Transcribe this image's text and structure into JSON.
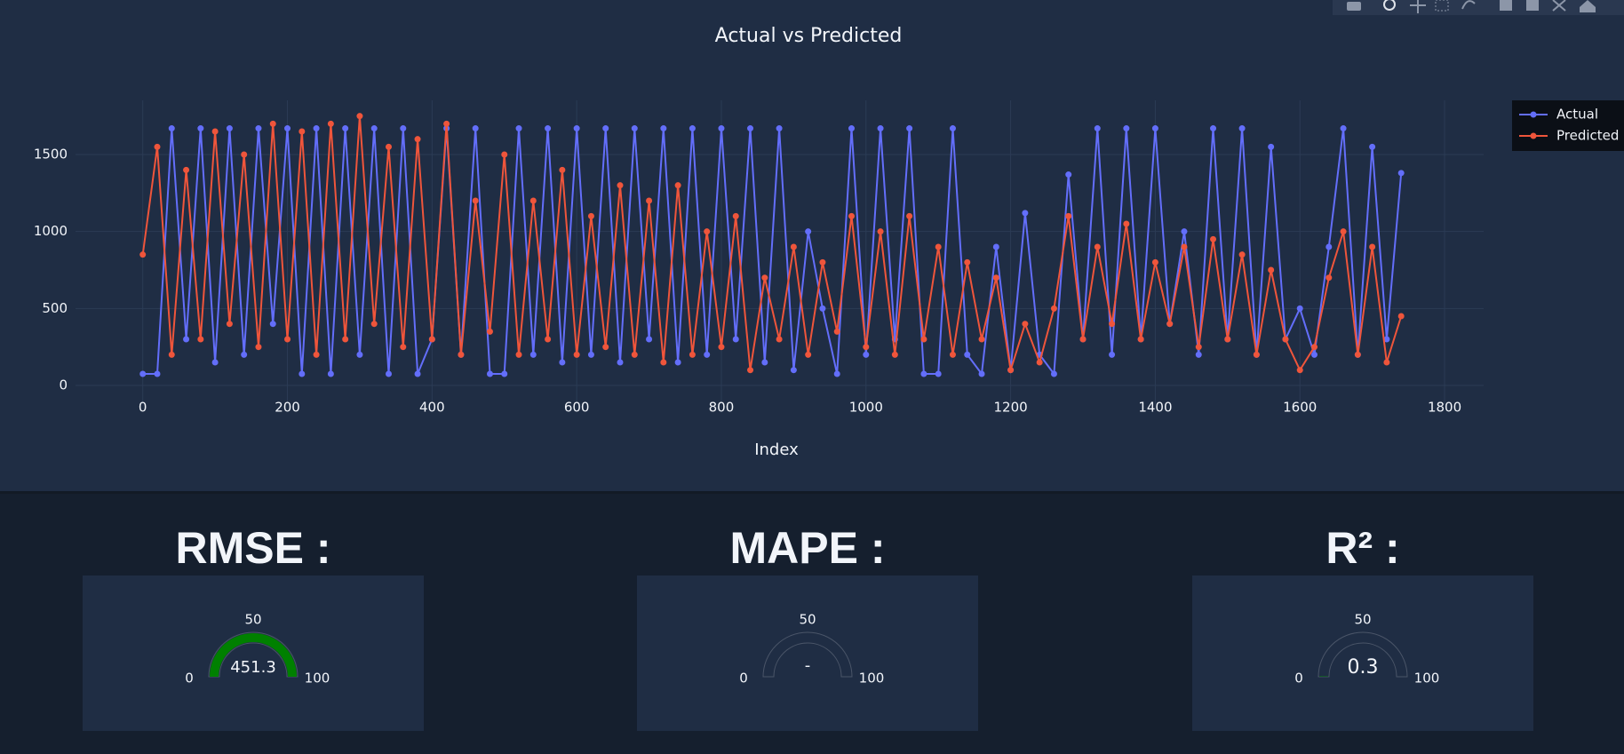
{
  "chart_data": [
    {
      "type": "line",
      "title": "Actual vs Predicted",
      "x_label": "Index",
      "x": [
        0,
        20,
        40,
        60,
        80,
        100,
        120,
        140,
        160,
        180,
        200,
        220,
        240,
        260,
        280,
        300,
        320,
        340,
        360,
        380,
        400,
        420,
        440,
        460,
        480,
        500,
        520,
        540,
        560,
        580,
        600,
        620,
        640,
        660,
        680,
        700,
        720,
        740,
        760,
        780,
        800,
        820,
        840,
        860,
        880,
        900,
        920,
        940,
        960,
        980,
        1000,
        1020,
        1040,
        1060,
        1080,
        1100,
        1120,
        1140,
        1160,
        1180,
        1200,
        1220,
        1240,
        1260,
        1280,
        1300,
        1320,
        1340,
        1360,
        1380,
        1400,
        1420,
        1440,
        1460,
        1480,
        1500,
        1520,
        1540,
        1560,
        1580,
        1600,
        1620,
        1640,
        1660,
        1680,
        1700,
        1720,
        1740
      ],
      "series": [
        {
          "name": "Actual",
          "color": "#636efa",
          "values": [
            75,
            75,
            1670,
            300,
            1670,
            150,
            1670,
            200,
            1670,
            400,
            1670,
            75,
            1670,
            75,
            1670,
            200,
            1670,
            75,
            1670,
            75,
            300,
            1670,
            200,
            1670,
            75,
            75,
            1670,
            200,
            1670,
            150,
            1670,
            200,
            1670,
            150,
            1670,
            300,
            1670,
            150,
            1670,
            200,
            1670,
            300,
            1670,
            150,
            1670,
            100,
            1000,
            500,
            75,
            1670,
            200,
            1670,
            300,
            1670,
            75,
            75,
            1670,
            200,
            75,
            900,
            100,
            1120,
            200,
            75,
            1370,
            300,
            1670,
            200,
            1670,
            300,
            1670,
            400,
            1000,
            200,
            1670,
            300,
            1670,
            200,
            1550,
            300,
            500,
            200,
            900,
            1670,
            200,
            1550,
            300,
            1380
          ]
        },
        {
          "name": "Predicted",
          "color": "#ef553b",
          "values": [
            850,
            1550,
            200,
            1400,
            300,
            1650,
            400,
            1500,
            250,
            1700,
            300,
            1650,
            200,
            1700,
            300,
            1750,
            400,
            1550,
            250,
            1600,
            300,
            1700,
            200,
            1200,
            350,
            1500,
            200,
            1200,
            300,
            1400,
            200,
            1100,
            250,
            1300,
            200,
            1200,
            150,
            1300,
            200,
            1000,
            250,
            1100,
            100,
            700,
            300,
            900,
            200,
            800,
            350,
            1100,
            250,
            1000,
            200,
            1100,
            300,
            900,
            200,
            800,
            300,
            700,
            100,
            400,
            150,
            500,
            1100,
            300,
            900,
            400,
            1050,
            300,
            800,
            400,
            900,
            250,
            950,
            300,
            850,
            200,
            750,
            300,
            100,
            250,
            700,
            1000,
            200,
            900,
            150,
            450
          ]
        }
      ],
      "xlim": [
        -93,
        1854
      ],
      "ylim": [
        -121,
        1852
      ],
      "xticks": [
        0,
        200,
        400,
        600,
        800,
        1000,
        1200,
        1400,
        1600,
        1800
      ],
      "yticks": [
        0,
        500,
        1000,
        1500
      ],
      "grid": true,
      "legend": "top-right"
    },
    {
      "type": "gauge",
      "title": "RMSE :",
      "value": 451.3,
      "range": [
        0,
        100
      ],
      "ticks": [
        0,
        50,
        100
      ],
      "color": "green"
    },
    {
      "type": "gauge",
      "title": "MAPE :",
      "value": null,
      "value_label": "-",
      "range": [
        0,
        100
      ],
      "ticks": [
        0,
        50,
        100
      ],
      "color": "green"
    },
    {
      "type": "gauge",
      "title": "R² :",
      "value": 0.3,
      "range": [
        0,
        100
      ],
      "ticks": [
        0,
        50,
        100
      ],
      "color": "green"
    }
  ]
}
